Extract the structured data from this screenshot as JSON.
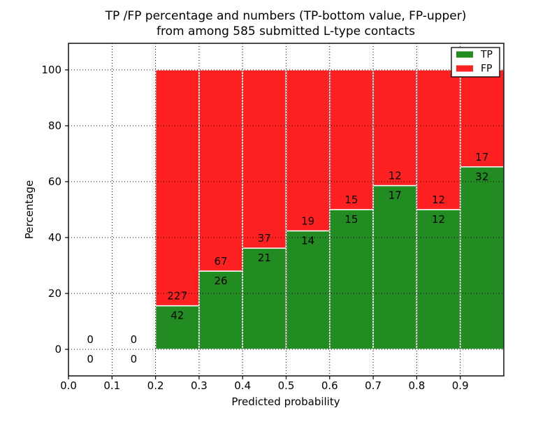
{
  "chart_data": {
    "type": "bar",
    "stacked": true,
    "title_line1": "TP /FP percentage and numbers (TP-bottom value, FP-upper)",
    "title_line2": "from among 585 submitted L-type contacts",
    "xlabel": "Predicted probability",
    "ylabel": "Percentage",
    "xlim": [
      0,
      1
    ],
    "ylim": [
      -9.5,
      109.5
    ],
    "x_tick_values": [
      0.0,
      0.1,
      0.2,
      0.3,
      0.4,
      0.5,
      0.6,
      0.7,
      0.8,
      0.9
    ],
    "x_tick_labels": [
      "0.0",
      "0.1",
      "0.2",
      "0.3",
      "0.4",
      "0.5",
      "0.6",
      "0.7",
      "0.8",
      "0.9"
    ],
    "y_tick_values": [
      0,
      20,
      40,
      60,
      80,
      100
    ],
    "y_tick_labels": [
      "0",
      "20",
      "40",
      "60",
      "80",
      "100"
    ],
    "grid": {
      "style": "dotted",
      "color": "#000000",
      "on": true
    },
    "colors": {
      "tp": "#228b22",
      "fp": "#ff2121",
      "bar_edge": "#ffffff",
      "text": "#000000",
      "background": "#ffffff"
    },
    "legend": {
      "position": "upper right",
      "entries": [
        {
          "label": "TP",
          "color": "#228b22"
        },
        {
          "label": "FP",
          "color": "#ff2121"
        }
      ]
    },
    "bins": [
      {
        "range": [
          0.0,
          0.1
        ],
        "tp": 0,
        "fp": 0,
        "tp_pct": 0.0
      },
      {
        "range": [
          0.1,
          0.2
        ],
        "tp": 0,
        "fp": 0,
        "tp_pct": 0.0
      },
      {
        "range": [
          0.2,
          0.3
        ],
        "tp": 42,
        "fp": 227,
        "tp_pct": 15.6
      },
      {
        "range": [
          0.3,
          0.4
        ],
        "tp": 26,
        "fp": 67,
        "tp_pct": 28.0
      },
      {
        "range": [
          0.4,
          0.5
        ],
        "tp": 21,
        "fp": 37,
        "tp_pct": 36.2
      },
      {
        "range": [
          0.5,
          0.6
        ],
        "tp": 14,
        "fp": 19,
        "tp_pct": 42.4
      },
      {
        "range": [
          0.6,
          0.7
        ],
        "tp": 15,
        "fp": 15,
        "tp_pct": 50.0
      },
      {
        "range": [
          0.7,
          0.8
        ],
        "tp": 17,
        "fp": 12,
        "tp_pct": 58.6
      },
      {
        "range": [
          0.8,
          0.9
        ],
        "tp": 12,
        "fp": 12,
        "tp_pct": 50.0
      },
      {
        "range": [
          0.9,
          1.0
        ],
        "tp": 32,
        "fp": 17,
        "tp_pct": 65.3
      }
    ]
  }
}
